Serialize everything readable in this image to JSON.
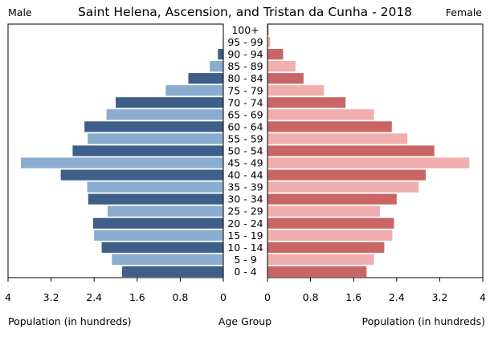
{
  "chart_data": {
    "type": "bar",
    "title": "Saint Helena, Ascension, and Tristan da Cunha - 2018",
    "left_label": "Male",
    "right_label": "Female",
    "xlabel_left": "Population (in hundreds)",
    "xlabel_center": "Age Group",
    "xlabel_right": "Population (in hundreds)",
    "xlim": [
      0,
      4
    ],
    "ticks_left": [
      "4",
      "3.2",
      "2.4",
      "1.6",
      "0.8",
      "0"
    ],
    "ticks_right": [
      "0",
      "0.8",
      "1.6",
      "2.4",
      "3.2",
      "4"
    ],
    "categories": [
      "100+",
      "95 - 99",
      "90 - 94",
      "85 - 89",
      "80 - 84",
      "75 - 79",
      "70 - 74",
      "65 - 69",
      "60 - 64",
      "55 - 59",
      "50 - 54",
      "45 - 49",
      "40 - 44",
      "35 - 39",
      "30 - 34",
      "25 - 29",
      "20 - 24",
      "15 - 19",
      "10 - 14",
      "5 - 9",
      "0 - 4"
    ],
    "series": [
      {
        "name": "Male",
        "values": [
          0.0,
          0.01,
          0.1,
          0.25,
          0.65,
          1.07,
          2.0,
          2.17,
          2.58,
          2.52,
          2.8,
          3.76,
          3.02,
          2.53,
          2.51,
          2.15,
          2.42,
          2.4,
          2.26,
          2.07,
          1.88
        ],
        "colors": [
          "#3e5f87",
          "#8aaccf"
        ]
      },
      {
        "name": "Female",
        "values": [
          0.02,
          0.05,
          0.29,
          0.52,
          0.67,
          1.05,
          1.45,
          1.98,
          2.31,
          2.6,
          3.1,
          3.75,
          2.94,
          2.81,
          2.4,
          2.09,
          2.35,
          2.32,
          2.17,
          1.98,
          1.84
        ],
        "colors": [
          "#c96565",
          "#f0aeae"
        ]
      }
    ],
    "legend": "none",
    "grid": false
  }
}
